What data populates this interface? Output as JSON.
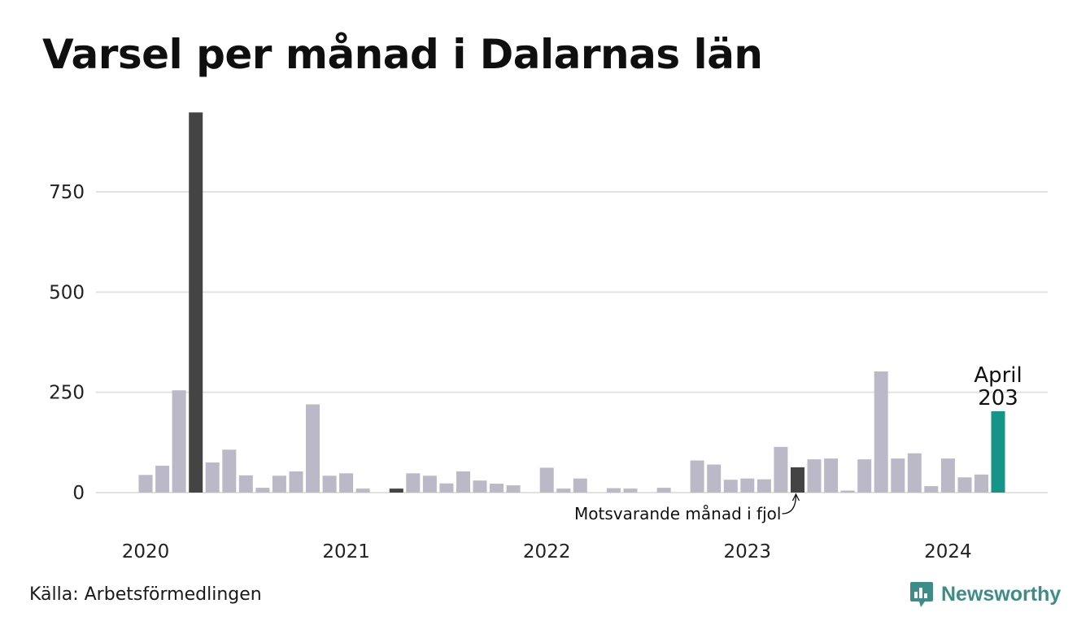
{
  "title": "Varsel per månad i Dalarnas län",
  "source": "Källa: Arbetsförmedlingen",
  "brand": {
    "name": "Newsworthy",
    "logo_icon": "newsworthy-logo-icon"
  },
  "colors": {
    "default_bar": "#bbb9c8",
    "highlight_bar": "#444444",
    "current_bar": "#159487",
    "grid": "#e2e2e2",
    "brand": "#3d8c87"
  },
  "chart_data": {
    "type": "bar",
    "title": "Varsel per månad i Dalarnas län",
    "xlabel": "",
    "ylabel": "",
    "ylim": [
      0,
      950
    ],
    "y_ticks": [
      0,
      250,
      500,
      750
    ],
    "x_tick_labels": [
      "2020",
      "2021",
      "2022",
      "2023",
      "2024"
    ],
    "grid": true,
    "categories": [
      "2020-01",
      "2020-02",
      "2020-03",
      "2020-04",
      "2020-05",
      "2020-06",
      "2020-07",
      "2020-08",
      "2020-09",
      "2020-10",
      "2020-11",
      "2020-12",
      "2021-01",
      "2021-02",
      "2021-03",
      "2021-04",
      "2021-05",
      "2021-06",
      "2021-07",
      "2021-08",
      "2021-09",
      "2021-10",
      "2021-11",
      "2021-12",
      "2022-01",
      "2022-02",
      "2022-03",
      "2022-04",
      "2022-05",
      "2022-06",
      "2022-07",
      "2022-08",
      "2022-09",
      "2022-10",
      "2022-11",
      "2022-12",
      "2023-01",
      "2023-02",
      "2023-03",
      "2023-04",
      "2023-05",
      "2023-06",
      "2023-07",
      "2023-08",
      "2023-09",
      "2023-10",
      "2023-11",
      "2023-12",
      "2024-01",
      "2024-02",
      "2024-03",
      "2024-04"
    ],
    "values": [
      44,
      67,
      255,
      948,
      75,
      107,
      43,
      12,
      42,
      53,
      220,
      42,
      48,
      10,
      0,
      10,
      48,
      42,
      23,
      53,
      30,
      22,
      18,
      0,
      62,
      10,
      35,
      0,
      11,
      10,
      0,
      12,
      0,
      80,
      70,
      32,
      35,
      33,
      114,
      63,
      83,
      85,
      5,
      83,
      302,
      85,
      98,
      16,
      85,
      38,
      45,
      203
    ],
    "highlights": [
      {
        "category": "2020-04",
        "kind": "max"
      },
      {
        "category": "2021-04",
        "kind": "same-month"
      },
      {
        "category": "2023-04",
        "kind": "same-month"
      }
    ],
    "current": {
      "category": "2024-04",
      "label": "April",
      "value_label": "203"
    },
    "annotation": {
      "text": "Motsvarande månad i fjol",
      "category": "2023-04"
    }
  }
}
